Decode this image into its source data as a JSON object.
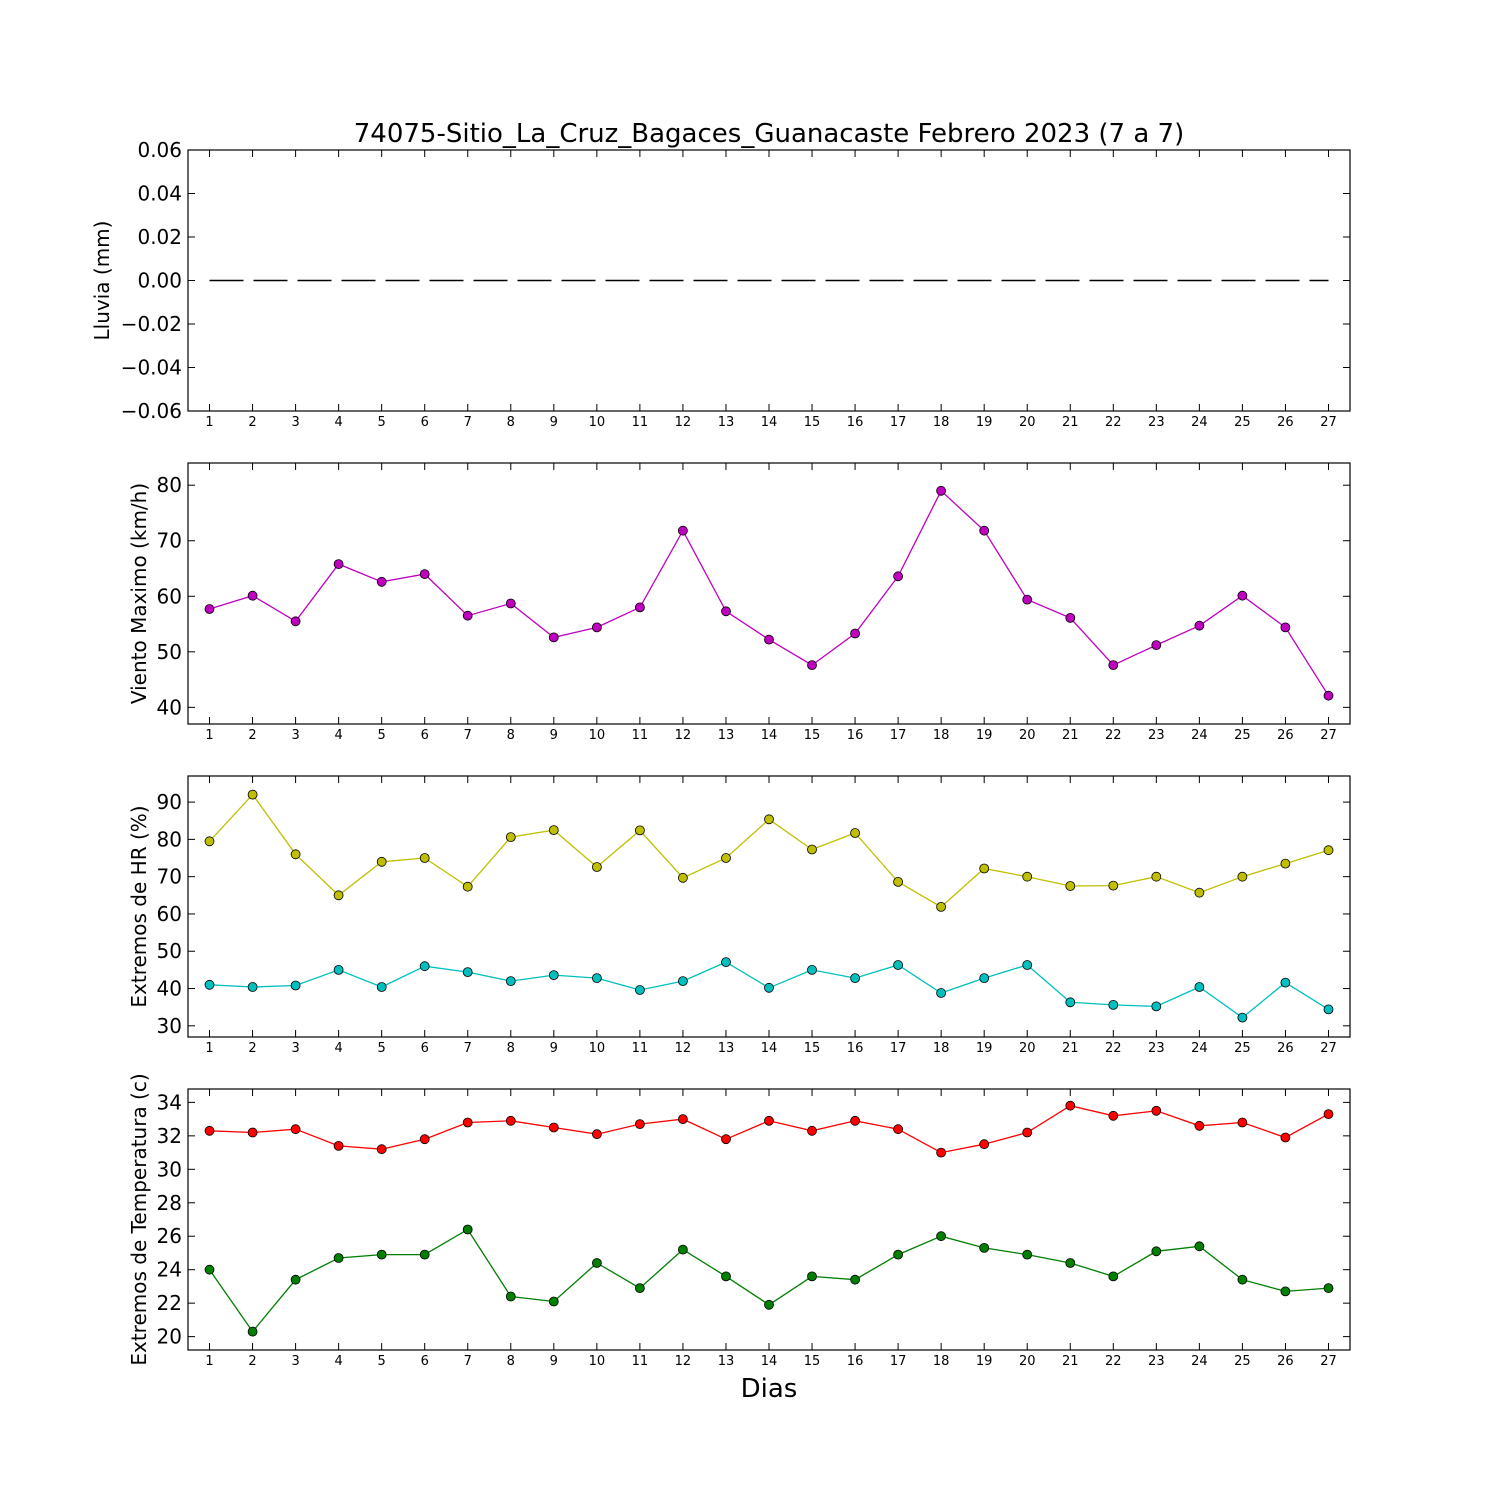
{
  "figure": {
    "title": "74075-Sitio_La_Cruz_Bagaces_Guanacaste Febrero 2023  (7 a 7)",
    "xlabel": "Dias"
  },
  "chart_data": [
    {
      "type": "line",
      "ylabel": "Lluvia (mm)",
      "x": [
        1,
        2,
        3,
        4,
        5,
        6,
        7,
        8,
        9,
        10,
        11,
        12,
        13,
        14,
        15,
        16,
        17,
        18,
        19,
        20,
        21,
        22,
        23,
        24,
        25,
        26,
        27
      ],
      "xlim": [
        0.5,
        27.5
      ],
      "ylim": [
        -0.06,
        0.06
      ],
      "yticks": [
        -0.06,
        -0.04,
        -0.02,
        0.0,
        0.02,
        0.04,
        0.06
      ],
      "ytick_labels": [
        "−0.06",
        "−0.04",
        "−0.02",
        "0.00",
        "0.02",
        "0.04",
        "0.06"
      ],
      "series": [
        {
          "values": [
            0,
            0,
            0,
            0,
            0,
            0,
            0,
            0,
            0,
            0,
            0,
            0,
            0,
            0,
            0,
            0,
            0,
            0,
            0,
            0,
            0,
            0,
            0,
            0,
            0,
            0,
            0
          ],
          "color": "#000000",
          "style": "dashed",
          "marker": "none"
        }
      ]
    },
    {
      "type": "line",
      "ylabel": "Viento Maximo (km/h)",
      "x": [
        1,
        2,
        3,
        4,
        5,
        6,
        7,
        8,
        9,
        10,
        11,
        12,
        13,
        14,
        15,
        16,
        17,
        18,
        19,
        20,
        21,
        22,
        23,
        24,
        25,
        26,
        27
      ],
      "xlim": [
        0.5,
        27.5
      ],
      "ylim": [
        37,
        84
      ],
      "yticks": [
        40,
        50,
        60,
        70,
        80
      ],
      "ytick_labels": [
        "40",
        "50",
        "60",
        "70",
        "80"
      ],
      "series": [
        {
          "values": [
            57.7,
            60.1,
            55.5,
            65.8,
            62.6,
            64.0,
            56.5,
            58.7,
            52.6,
            54.4,
            58.0,
            71.8,
            57.3,
            52.2,
            47.6,
            53.3,
            63.6,
            79.0,
            71.8,
            59.4,
            56.1,
            47.6,
            51.2,
            54.7,
            60.1,
            54.4,
            42.1
          ],
          "color": "#bf00bf",
          "style": "solid",
          "marker": "circle"
        }
      ]
    },
    {
      "type": "line",
      "ylabel": "Extremos de HR (%)",
      "x": [
        1,
        2,
        3,
        4,
        5,
        6,
        7,
        8,
        9,
        10,
        11,
        12,
        13,
        14,
        15,
        16,
        17,
        18,
        19,
        20,
        21,
        22,
        23,
        24,
        25,
        26,
        27
      ],
      "xlim": [
        0.5,
        27.5
      ],
      "ylim": [
        27,
        97
      ],
      "yticks": [
        30,
        40,
        50,
        60,
        70,
        80,
        90
      ],
      "ytick_labels": [
        "30",
        "40",
        "50",
        "60",
        "70",
        "80",
        "90"
      ],
      "series": [
        {
          "values": [
            79.5,
            92.0,
            76.0,
            65.0,
            74.0,
            75.0,
            67.3,
            80.6,
            82.5,
            72.6,
            82.4,
            69.7,
            75.0,
            85.4,
            77.3,
            81.7,
            68.6,
            61.9,
            72.2,
            70.0,
            67.5,
            67.6,
            70.0,
            65.7,
            70.0,
            73.5,
            77.1
          ],
          "color": "#bfbf00",
          "style": "solid",
          "marker": "circle"
        },
        {
          "values": [
            41.0,
            40.4,
            40.8,
            45.0,
            40.4,
            46.0,
            44.4,
            42.0,
            43.6,
            42.8,
            39.6,
            42.0,
            47.1,
            40.2,
            45.0,
            42.8,
            46.3,
            38.8,
            42.8,
            46.3,
            36.3,
            35.6,
            35.2,
            40.4,
            32.2,
            41.6,
            34.4
          ],
          "color": "#00bfbf",
          "style": "solid",
          "marker": "circle"
        }
      ]
    },
    {
      "type": "line",
      "ylabel": "Extremos de Temperatura (c)",
      "x": [
        1,
        2,
        3,
        4,
        5,
        6,
        7,
        8,
        9,
        10,
        11,
        12,
        13,
        14,
        15,
        16,
        17,
        18,
        19,
        20,
        21,
        22,
        23,
        24,
        25,
        26,
        27
      ],
      "xlim": [
        0.5,
        27.5
      ],
      "ylim": [
        19.2,
        34.8
      ],
      "yticks": [
        20,
        22,
        24,
        26,
        28,
        30,
        32,
        34
      ],
      "ytick_labels": [
        "20",
        "22",
        "24",
        "26",
        "28",
        "30",
        "32",
        "34"
      ],
      "series": [
        {
          "values": [
            32.3,
            32.2,
            32.4,
            31.4,
            31.2,
            31.8,
            32.8,
            32.9,
            32.5,
            32.1,
            32.7,
            33.0,
            31.8,
            32.9,
            32.3,
            32.9,
            32.4,
            31.0,
            31.5,
            32.2,
            33.8,
            33.2,
            33.5,
            32.6,
            32.8,
            31.9,
            33.3
          ],
          "color": "#ff0000",
          "style": "solid",
          "marker": "circle"
        },
        {
          "values": [
            24.0,
            20.3,
            23.4,
            24.7,
            24.9,
            24.9,
            26.4,
            22.4,
            22.1,
            24.4,
            22.9,
            25.2,
            23.6,
            21.9,
            23.6,
            23.4,
            24.9,
            26.0,
            25.3,
            24.9,
            24.4,
            23.6,
            25.1,
            25.4,
            23.4,
            22.7,
            22.9
          ],
          "color": "#007f00",
          "style": "solid",
          "marker": "circle"
        }
      ]
    }
  ]
}
